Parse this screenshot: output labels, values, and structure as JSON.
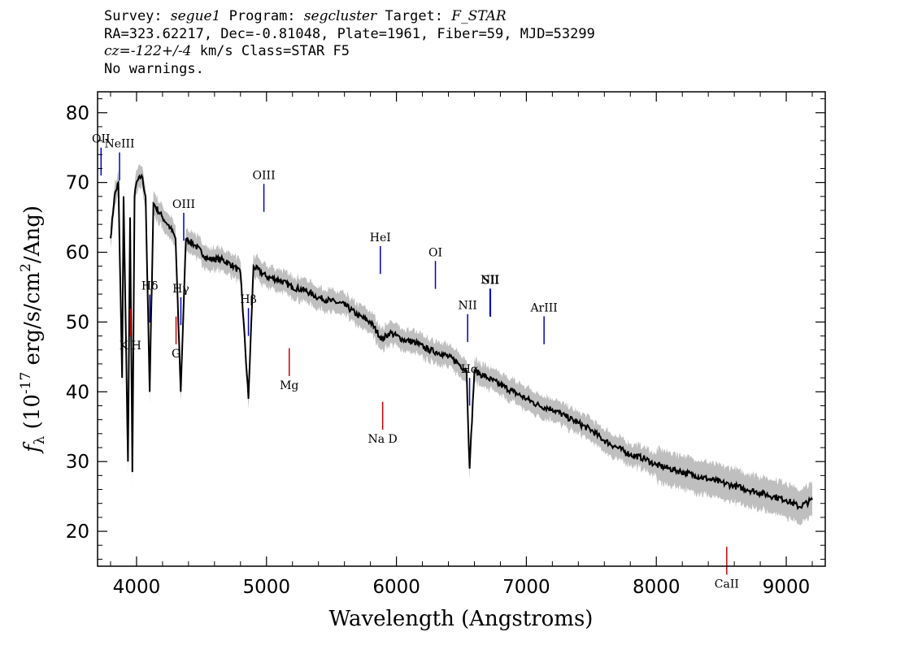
{
  "header": {
    "survey_label": "Survey:",
    "survey_value": "segue1",
    "program_label": "Program:",
    "program_value": "segcluster",
    "target_label": "Target:",
    "target_value": "F_STAR",
    "line2": "RA=323.62217, Dec=-0.81048, Plate=1961, Fiber=59, MJD=53299",
    "cz_label": "cz=",
    "cz_value": "-122+/-4",
    "cz_rest": " km/s Class=STAR F5",
    "line4": "No warnings."
  },
  "chart_data": {
    "type": "line",
    "title": "",
    "xlabel": "Wavelength (Angstroms)",
    "ylabel": "f_λ (10^-17 erg/s/cm^2/Ang)",
    "xlim": [
      3700,
      9300
    ],
    "ylim": [
      15,
      83
    ],
    "x_ticks": [
      4000,
      5000,
      6000,
      7000,
      8000,
      9000
    ],
    "y_ticks": [
      20,
      30,
      40,
      50,
      60,
      70,
      80
    ],
    "colors": {
      "flux": "#000000",
      "error_band": "#bfbfbf",
      "emission_marker": "#0000cc",
      "absorption_marker": "#cc0000"
    },
    "series": [
      {
        "x": [
          3800,
          3830,
          3860,
          3889,
          3900,
          3934,
          3950,
          3968,
          3985,
          4000,
          4040,
          4070,
          4101,
          4130,
          4200,
          4260,
          4300,
          4340,
          4380,
          4450,
          4550,
          4650,
          4750,
          4800,
          4861,
          4900,
          5000,
          5100,
          5200,
          5300,
          5400,
          5500,
          5600,
          5700,
          5800,
          5890,
          5950,
          6050,
          6150,
          6250,
          6350,
          6450,
          6540,
          6563,
          6600,
          6700,
          6800,
          6900,
          7000,
          7100,
          7200,
          7300,
          7400,
          7500,
          7600,
          7700,
          7800,
          7900,
          8000,
          8100,
          8200,
          8300,
          8400,
          8500,
          8600,
          8700,
          8800,
          8900,
          9000,
          9100,
          9200
        ],
        "y": [
          62,
          68,
          70,
          42,
          68,
          30,
          65,
          28.5,
          68,
          70,
          71,
          68,
          40,
          67,
          65,
          63.5,
          62,
          40,
          62,
          61,
          59,
          59,
          58,
          57,
          39,
          58,
          56.5,
          56,
          55,
          54.5,
          53.5,
          53,
          52.5,
          51,
          50,
          47.5,
          48.5,
          47.5,
          47,
          46,
          45.5,
          44.5,
          43,
          29,
          43,
          42,
          41,
          40,
          39,
          38,
          37.5,
          36.5,
          35.5,
          34.5,
          33,
          32,
          31,
          30.5,
          29.5,
          29,
          28.5,
          28,
          27.5,
          27,
          26.5,
          26,
          25.5,
          25,
          24.5,
          23.5,
          24.5
        ]
      }
    ],
    "line_markers": [
      {
        "label": "OII",
        "wavelength": 3727,
        "type": "emission"
      },
      {
        "label": "NeIII",
        "wavelength": 3869,
        "type": "emission"
      },
      {
        "label": "Hδ",
        "wavelength": 4102,
        "type": "emission"
      },
      {
        "label": "Hγ",
        "wavelength": 4341,
        "type": "emission"
      },
      {
        "label": "OIII",
        "wavelength": 4363,
        "type": "emission"
      },
      {
        "label": "Hβ",
        "wavelength": 4861,
        "type": "emission"
      },
      {
        "label": "OIII",
        "wavelength": 4980,
        "type": "emission"
      },
      {
        "label": "HeI",
        "wavelength": 5876,
        "type": "emission"
      },
      {
        "label": "OI",
        "wavelength": 6300,
        "type": "emission"
      },
      {
        "label": "NII",
        "wavelength": 6548,
        "type": "emission"
      },
      {
        "label": "Hα",
        "wavelength": 6563,
        "type": "emission"
      },
      {
        "label": "NII",
        "wavelength": 6720,
        "type": "emission"
      },
      {
        "label": "SII",
        "wavelength": 6724,
        "type": "emission"
      },
      {
        "label": "ArIII",
        "wavelength": 7136,
        "type": "emission"
      },
      {
        "label": "K H",
        "wavelength": 3952,
        "type": "absorption"
      },
      {
        "label": "G",
        "wavelength": 4304,
        "type": "absorption"
      },
      {
        "label": "Mg",
        "wavelength": 5175,
        "type": "absorption"
      },
      {
        "label": "Na D",
        "wavelength": 5894,
        "type": "absorption"
      },
      {
        "label": "CaII",
        "wavelength": 8542,
        "type": "absorption"
      }
    ]
  }
}
